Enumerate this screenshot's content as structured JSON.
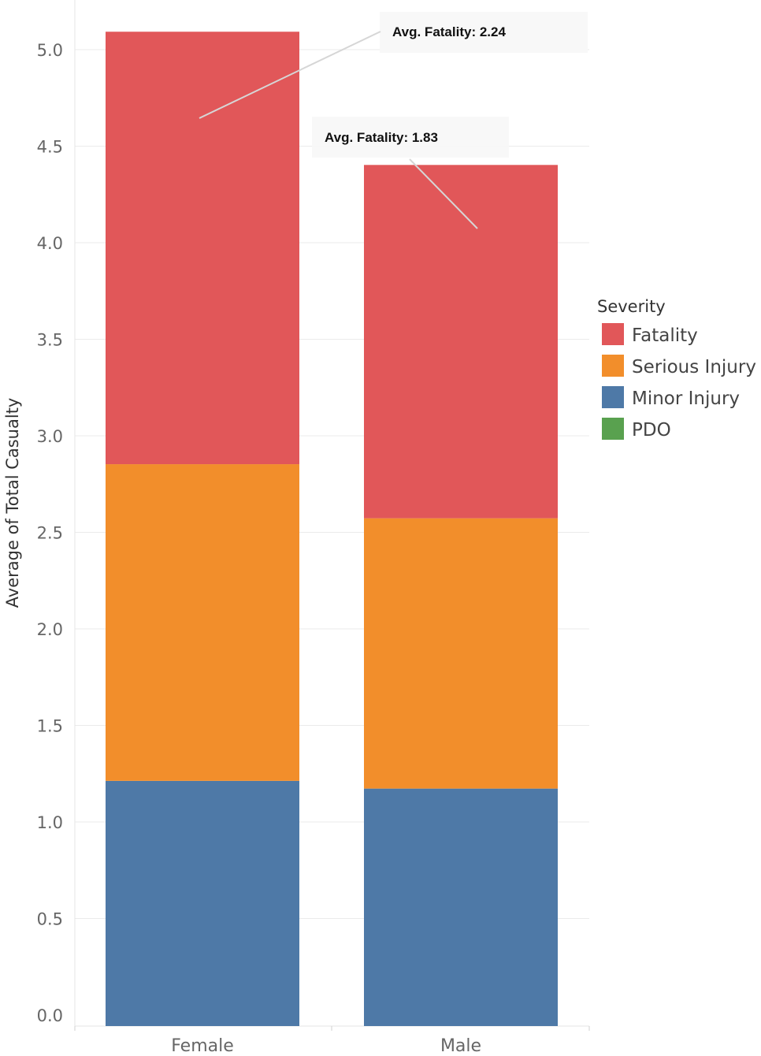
{
  "chart_data": {
    "type": "bar",
    "stacked": true,
    "categories": [
      "Female",
      "Male"
    ],
    "ylabel": "Average of Total Casualty",
    "ylim": [
      0,
      5.27
    ],
    "yticks": [
      "0.0",
      "0.5",
      "1.0",
      "1.5",
      "2.0",
      "2.5",
      "3.0",
      "3.5",
      "4.0",
      "4.5",
      "5.0"
    ],
    "grid": true,
    "legend": {
      "title": "Severity",
      "placement": "right",
      "entries": [
        {
          "label": "Fatality",
          "color": "#E15759"
        },
        {
          "label": "Serious Injury",
          "color": "#F28E2B"
        },
        {
          "label": "Minor Injury",
          "color": "#4E79A7"
        },
        {
          "label": "PDO",
          "color": "#59A14F"
        }
      ]
    },
    "series": [
      {
        "name": "Minor Injury",
        "color": "#4E79A7",
        "values": [
          1.27,
          1.23
        ]
      },
      {
        "name": "Serious Injury",
        "color": "#F28E2B",
        "values": [
          1.64,
          1.4
        ]
      },
      {
        "name": "Fatality",
        "color": "#E15759",
        "values": [
          2.24,
          1.83
        ]
      },
      {
        "name": "PDO",
        "color": "#59A14F",
        "values": [
          0,
          0
        ]
      }
    ],
    "annotations": [
      {
        "text": "Avg. Fatality: 2.24",
        "category": "Female"
      },
      {
        "text": "Avg. Fatality: 1.83",
        "category": "Male"
      }
    ]
  }
}
